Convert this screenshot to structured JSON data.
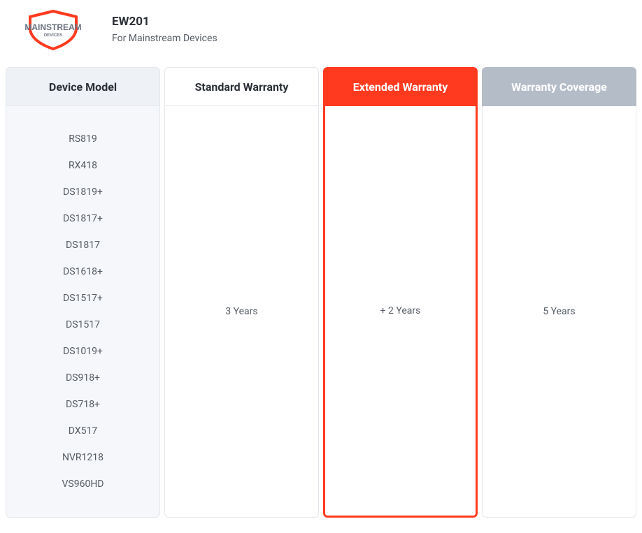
{
  "header": {
    "brand_line1": "MAINSTREAM",
    "brand_line2": "DEVICES",
    "title": "EW201",
    "subtitle": "For Mainstream Devices"
  },
  "colors": {
    "accent": "#ff3a1f",
    "muted_header": "#b4bcc8",
    "panel_bg": "#f5f7fa",
    "panel_header_bg": "#eef1f5",
    "border": "#e3e6ea",
    "text_primary": "#2b2f36",
    "text_secondary": "#555b63",
    "white": "#ffffff"
  },
  "table": {
    "columns": [
      {
        "key": "model",
        "header": "Device Model"
      },
      {
        "key": "standard",
        "header": "Standard Warranty",
        "value": "3 Years"
      },
      {
        "key": "extended",
        "header": "Extended Warranty",
        "value": "+ 2 Years",
        "highlight": true
      },
      {
        "key": "coverage",
        "header": "Warranty Coverage",
        "value": "5 Years"
      }
    ],
    "devices": [
      "RS819",
      "RX418",
      "DS1819+",
      "DS1817+",
      "DS1817",
      "DS1618+",
      "DS1517+",
      "DS1517",
      "DS1019+",
      "DS918+",
      "DS718+",
      "DX517",
      "NVR1218",
      "VS960HD"
    ]
  }
}
